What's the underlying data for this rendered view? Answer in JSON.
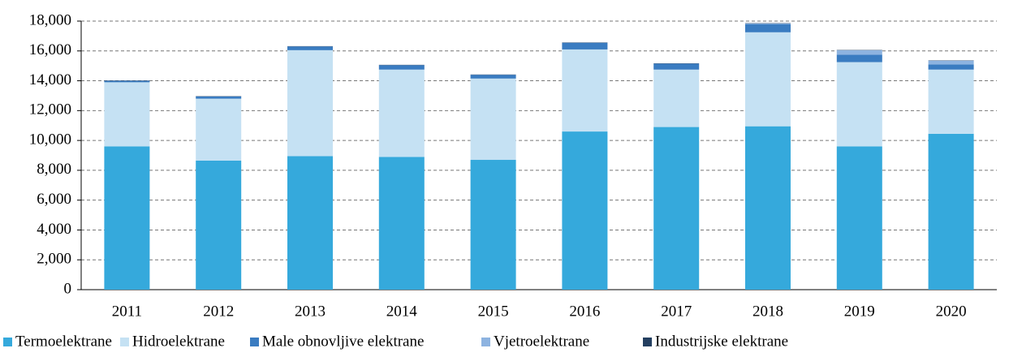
{
  "chart_data": {
    "type": "bar",
    "stacked": true,
    "categories": [
      "2011",
      "2012",
      "2013",
      "2014",
      "2015",
      "2016",
      "2017",
      "2018",
      "2019",
      "2020"
    ],
    "series": [
      {
        "name": "Termoelektrane",
        "color": "#35a9dc",
        "values": [
          9600,
          8650,
          8950,
          8900,
          8700,
          10600,
          10900,
          10950,
          9600,
          10450
        ]
      },
      {
        "name": "Hidroelektrane",
        "color": "#c5e1f3",
        "values": [
          4300,
          4150,
          7100,
          5850,
          5450,
          5500,
          3850,
          6300,
          5650,
          4300
        ]
      },
      {
        "name": "Male obnovljive elektrane",
        "color": "#3a7cc1",
        "values": [
          100,
          150,
          250,
          300,
          250,
          450,
          400,
          550,
          500,
          350
        ]
      },
      {
        "name": "Vjetroelektrane",
        "color": "#8db3e0",
        "values": [
          0,
          0,
          0,
          0,
          0,
          0,
          0,
          50,
          300,
          250
        ]
      },
      {
        "name": "Industrijske elektrane",
        "color": "#243f60",
        "values": [
          20,
          20,
          20,
          20,
          20,
          20,
          20,
          20,
          20,
          20
        ]
      }
    ],
    "ylim": [
      0,
      18000
    ],
    "yticks": [
      0,
      {
        "value": 2000,
        "label": "2,000"
      },
      {
        "value": 4000,
        "label": "4,000"
      },
      {
        "value": 6000,
        "label": "6,000"
      },
      {
        "value": 8000,
        "label": "8,000"
      },
      {
        "value": 10000,
        "label": "10,000"
      },
      {
        "value": 12000,
        "label": "12,000"
      },
      {
        "value": 14000,
        "label": "14,000"
      },
      {
        "value": 16000,
        "label": "16,000"
      },
      {
        "value": 18000,
        "label": "18,000"
      }
    ],
    "grid": true
  }
}
